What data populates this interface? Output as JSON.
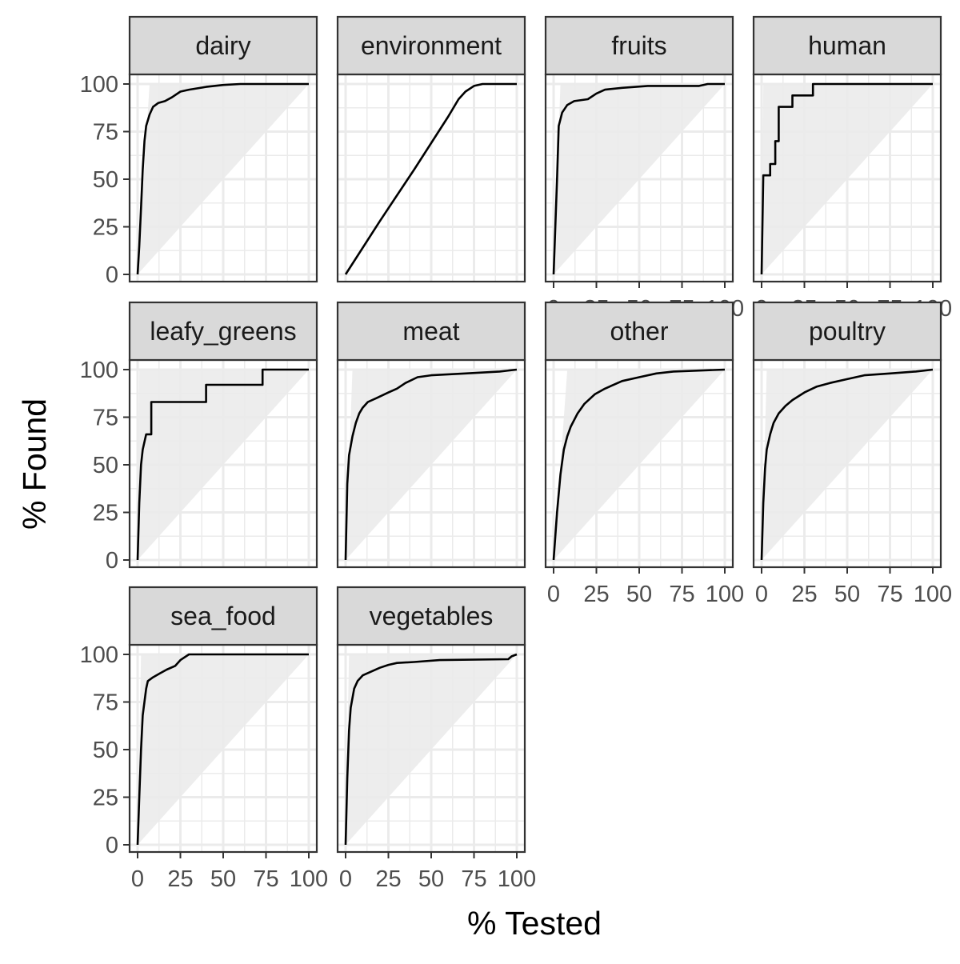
{
  "chart_data": {
    "type": "line",
    "xlabel": "% Tested",
    "ylabel": "% Found",
    "xlim": [
      0,
      100
    ],
    "ylim": [
      0,
      100
    ],
    "x_ticks": [
      "0",
      "25",
      "50",
      "75",
      "100"
    ],
    "y_ticks": [
      "0",
      "25",
      "50",
      "75",
      "100"
    ],
    "grid": true,
    "layout": "facet grid, 4 columns x 3 rows",
    "colors": {
      "line": "#000000",
      "ribbon": "#ebebeb",
      "strip_fill": "#d9d9d9",
      "grid_major": "#ebebeb",
      "panel_border": "#333333"
    },
    "panels": [
      {
        "label": "dairy",
        "ribbon_upper": [
          [
            0,
            0
          ],
          [
            7,
            100
          ],
          [
            100,
            100
          ]
        ],
        "points": [
          [
            0,
            0
          ],
          [
            1,
            15
          ],
          [
            2,
            35
          ],
          [
            3,
            55
          ],
          [
            4,
            70
          ],
          [
            5,
            78
          ],
          [
            7,
            84
          ],
          [
            9,
            88
          ],
          [
            12,
            90
          ],
          [
            16,
            91
          ],
          [
            20,
            93
          ],
          [
            25,
            96
          ],
          [
            30,
            97
          ],
          [
            40,
            98.5
          ],
          [
            50,
            99.5
          ],
          [
            60,
            100
          ],
          [
            100,
            100
          ]
        ]
      },
      {
        "label": "environment",
        "ribbon_upper": [
          [
            0,
            0
          ],
          [
            100,
            100
          ]
        ],
        "points": [
          [
            0,
            0
          ],
          [
            20,
            28
          ],
          [
            40,
            55
          ],
          [
            60,
            83
          ],
          [
            66,
            92
          ],
          [
            70,
            96
          ],
          [
            75,
            99
          ],
          [
            80,
            100
          ],
          [
            100,
            100
          ]
        ]
      },
      {
        "label": "fruits",
        "ribbon_upper": [
          [
            0,
            0
          ],
          [
            4,
            100
          ],
          [
            100,
            100
          ]
        ],
        "points": [
          [
            0,
            0
          ],
          [
            2,
            50
          ],
          [
            3,
            78
          ],
          [
            5,
            85
          ],
          [
            8,
            89
          ],
          [
            12,
            91
          ],
          [
            20,
            92
          ],
          [
            25,
            95
          ],
          [
            30,
            97
          ],
          [
            40,
            98
          ],
          [
            55,
            99
          ],
          [
            85,
            99
          ],
          [
            90,
            100
          ],
          [
            100,
            100
          ]
        ]
      },
      {
        "label": "human",
        "ribbon_upper": [
          [
            0,
            0
          ],
          [
            1,
            100
          ],
          [
            100,
            100
          ]
        ],
        "points": [
          [
            0,
            0
          ],
          [
            1,
            52
          ],
          [
            5,
            52
          ],
          [
            5,
            58
          ],
          [
            8,
            58
          ],
          [
            8,
            70
          ],
          [
            10,
            70
          ],
          [
            10,
            88
          ],
          [
            18,
            88
          ],
          [
            18,
            94
          ],
          [
            30,
            94
          ],
          [
            30,
            100
          ],
          [
            100,
            100
          ]
        ]
      },
      {
        "label": "leafy_greens",
        "ribbon_upper": [
          [
            0,
            0
          ],
          [
            1,
            100
          ],
          [
            100,
            100
          ]
        ],
        "points": [
          [
            0,
            0
          ],
          [
            1,
            30
          ],
          [
            2,
            50
          ],
          [
            3,
            58
          ],
          [
            5,
            66
          ],
          [
            8,
            66
          ],
          [
            8,
            83
          ],
          [
            40,
            83
          ],
          [
            40,
            92
          ],
          [
            73,
            92
          ],
          [
            73,
            100
          ],
          [
            100,
            100
          ]
        ]
      },
      {
        "label": "meat",
        "ribbon_upper": [
          [
            0,
            0
          ],
          [
            4,
            100
          ],
          [
            100,
            100
          ]
        ],
        "points": [
          [
            0,
            0
          ],
          [
            1,
            40
          ],
          [
            2,
            55
          ],
          [
            4,
            65
          ],
          [
            6,
            72
          ],
          [
            8,
            77
          ],
          [
            10,
            80
          ],
          [
            13,
            83
          ],
          [
            18,
            85
          ],
          [
            25,
            88
          ],
          [
            30,
            90
          ],
          [
            35,
            93
          ],
          [
            42,
            96
          ],
          [
            50,
            97
          ],
          [
            70,
            98
          ],
          [
            90,
            99
          ],
          [
            100,
            100
          ]
        ]
      },
      {
        "label": "other",
        "ribbon_upper": [
          [
            0,
            0
          ],
          [
            8,
            100
          ],
          [
            100,
            100
          ]
        ],
        "points": [
          [
            0,
            0
          ],
          [
            2,
            25
          ],
          [
            4,
            45
          ],
          [
            6,
            58
          ],
          [
            8,
            65
          ],
          [
            10,
            70
          ],
          [
            14,
            77
          ],
          [
            18,
            82
          ],
          [
            24,
            87
          ],
          [
            30,
            90
          ],
          [
            40,
            94
          ],
          [
            50,
            96
          ],
          [
            60,
            98
          ],
          [
            70,
            99
          ],
          [
            85,
            99.5
          ],
          [
            100,
            100
          ]
        ]
      },
      {
        "label": "poultry",
        "ribbon_upper": [
          [
            0,
            0
          ],
          [
            3,
            100
          ],
          [
            100,
            100
          ]
        ],
        "points": [
          [
            0,
            0
          ],
          [
            1,
            30
          ],
          [
            2,
            48
          ],
          [
            3,
            58
          ],
          [
            5,
            66
          ],
          [
            7,
            72
          ],
          [
            10,
            77
          ],
          [
            14,
            81
          ],
          [
            18,
            84
          ],
          [
            25,
            88
          ],
          [
            32,
            91
          ],
          [
            40,
            93
          ],
          [
            50,
            95
          ],
          [
            60,
            97
          ],
          [
            75,
            98
          ],
          [
            90,
            99
          ],
          [
            100,
            100
          ]
        ]
      },
      {
        "label": "sea_food",
        "ribbon_upper": [
          [
            0,
            0
          ],
          [
            2,
            100
          ],
          [
            100,
            100
          ]
        ],
        "points": [
          [
            0,
            0
          ],
          [
            1,
            25
          ],
          [
            2,
            50
          ],
          [
            3,
            68
          ],
          [
            5,
            82
          ],
          [
            6,
            86
          ],
          [
            9,
            88
          ],
          [
            13,
            90
          ],
          [
            17,
            92
          ],
          [
            22,
            94
          ],
          [
            25,
            97
          ],
          [
            30,
            100
          ],
          [
            100,
            100
          ]
        ]
      },
      {
        "label": "vegetables",
        "ribbon_upper": [
          [
            0,
            0
          ],
          [
            2,
            100
          ],
          [
            100,
            100
          ]
        ],
        "points": [
          [
            0,
            0
          ],
          [
            1,
            35
          ],
          [
            2,
            60
          ],
          [
            3,
            72
          ],
          [
            5,
            82
          ],
          [
            7,
            86
          ],
          [
            10,
            89
          ],
          [
            15,
            91
          ],
          [
            20,
            93
          ],
          [
            25,
            94.5
          ],
          [
            30,
            95.5
          ],
          [
            40,
            96
          ],
          [
            55,
            97
          ],
          [
            95,
            97.5
          ],
          [
            97,
            99
          ],
          [
            100,
            100
          ]
        ]
      }
    ]
  }
}
